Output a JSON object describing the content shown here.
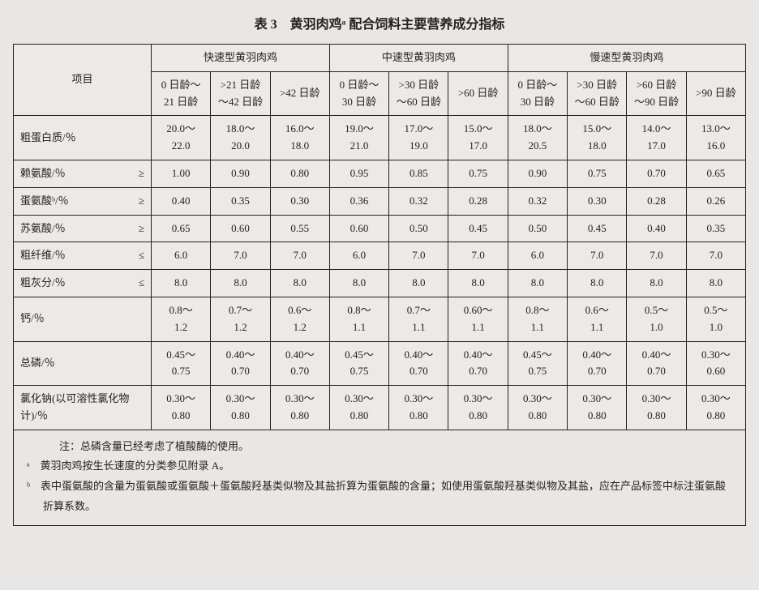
{
  "title": "表 3　黄羽肉鸡ᵃ 配合饲料主要营养成分指标",
  "groupHeaders": {
    "item": "项目",
    "fast": "快速型黄羽肉鸡",
    "medium": "中速型黄羽肉鸡",
    "slow": "慢速型黄羽肉鸡"
  },
  "subHeaders": {
    "f1": "0 日龄～\n21 日龄",
    "f2": ">21 日龄\n～42 日龄",
    "f3": ">42 日龄",
    "m1": "0 日龄～\n30 日龄",
    "m2": ">30 日龄\n～60 日龄",
    "m3": ">60 日龄",
    "s1": "0 日龄～\n30 日龄",
    "s2": ">30 日龄\n～60 日龄",
    "s3": ">60 日龄\n～90 日龄",
    "s4": ">90 日龄"
  },
  "rows": [
    {
      "label": "粗蛋白质/％",
      "ineq": "",
      "cells": [
        "20.0～\n22.0",
        "18.0～\n20.0",
        "16.0～\n18.0",
        "19.0～\n21.0",
        "17.0～\n19.0",
        "15.0～\n17.0",
        "18.0～\n20.5",
        "15.0～\n18.0",
        "14.0～\n17.0",
        "13.0～\n16.0"
      ]
    },
    {
      "label": "赖氨酸/％",
      "ineq": "≥",
      "cells": [
        "1.00",
        "0.90",
        "0.80",
        "0.95",
        "0.85",
        "0.75",
        "0.90",
        "0.75",
        "0.70",
        "0.65"
      ]
    },
    {
      "label": "蛋氨酸ᵇ/％",
      "ineq": "≥",
      "cells": [
        "0.40",
        "0.35",
        "0.30",
        "0.36",
        "0.32",
        "0.28",
        "0.32",
        "0.30",
        "0.28",
        "0.26"
      ]
    },
    {
      "label": "苏氨酸/％",
      "ineq": "≥",
      "cells": [
        "0.65",
        "0.60",
        "0.55",
        "0.60",
        "0.50",
        "0.45",
        "0.50",
        "0.45",
        "0.40",
        "0.35"
      ]
    },
    {
      "label": "粗纤维/％",
      "ineq": "≤",
      "cells": [
        "6.0",
        "7.0",
        "7.0",
        "6.0",
        "7.0",
        "7.0",
        "6.0",
        "7.0",
        "7.0",
        "7.0"
      ]
    },
    {
      "label": "粗灰分/％",
      "ineq": "≤",
      "cells": [
        "8.0",
        "8.0",
        "8.0",
        "8.0",
        "8.0",
        "8.0",
        "8.0",
        "8.0",
        "8.0",
        "8.0"
      ]
    },
    {
      "label": "钙/％",
      "ineq": "",
      "cells": [
        "0.8～\n1.2",
        "0.7～\n1.2",
        "0.6～\n1.2",
        "0.8～\n1.1",
        "0.7～\n1.1",
        "0.60～\n1.1",
        "0.8～\n1.1",
        "0.6～\n1.1",
        "0.5～\n1.0",
        "0.5～\n1.0"
      ]
    },
    {
      "label": "总磷/％",
      "ineq": "",
      "cells": [
        "0.45～\n0.75",
        "0.40～\n0.70",
        "0.40～\n0.70",
        "0.45～\n0.75",
        "0.40～\n0.70",
        "0.40～\n0.70",
        "0.45～\n0.75",
        "0.40～\n0.70",
        "0.40～\n0.70",
        "0.30～\n0.60"
      ]
    },
    {
      "label": "氯化钠(以可溶性氯化物\n计)/％",
      "ineq": "",
      "cells": [
        "0.30～\n0.80",
        "0.30～\n0.80",
        "0.30～\n0.80",
        "0.30～\n0.80",
        "0.30～\n0.80",
        "0.30～\n0.80",
        "0.30～\n0.80",
        "0.30～\n0.80",
        "0.30～\n0.80",
        "0.30～\n0.80"
      ]
    }
  ],
  "footnotes": {
    "heading": "注：总磷含量已经考虑了植酸酶的使用。",
    "a": "ᵃ　黄羽肉鸡按生长速度的分类参见附录 A。",
    "b": "ᵇ　表中蛋氨酸的含量为蛋氨酸或蛋氨酸＋蛋氨酸羟基类似物及其盐折算为蛋氨酸的含量；如使用蛋氨酸羟基类似物及其盐，应在产品标签中标注蛋氨酸折算系数。"
  }
}
